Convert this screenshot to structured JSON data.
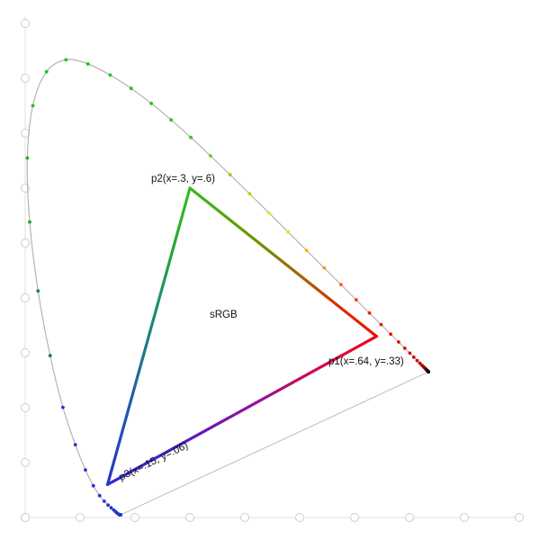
{
  "page": {
    "background": "#ffffff"
  },
  "labels": {
    "p1": {
      "text": "p1(x=.64, y=.33)"
    },
    "p2": {
      "text": "p2(x=.3, y=.6)"
    },
    "p3": {
      "text": "p3(x=.15, y=.06)"
    },
    "srgb": {
      "text": "sRGB"
    }
  },
  "chart_data": {
    "type": "line",
    "description": "CIE 1931 xy chromaticity spectral locus (horseshoe) with wavelength sample dots, line of purples, and sRGB gamut triangle",
    "xlim": [
      0,
      0.9
    ],
    "ylim": [
      0,
      0.9
    ],
    "tick_step": 0.1,
    "grid": false,
    "legend": false,
    "axis_style": {
      "line_color": "#e0e0e0",
      "tick_marker": "circle",
      "tick_fill": "#ffffff",
      "tick_stroke": "#cccccc",
      "tick_radius": 4.5
    },
    "locus_line_color": "#b4b4b4",
    "purple_line_color": "#bdbdbd",
    "srgb_triangle": {
      "label": "sRGB",
      "points": {
        "p1": [
          0.64,
          0.33
        ],
        "p2": [
          0.3,
          0.6
        ],
        "p3": [
          0.15,
          0.06
        ]
      },
      "stroke_width": 3.2,
      "edges": [
        {
          "from": "p3",
          "to": "p2",
          "stops": [
            [
              0,
              "#2433d0"
            ],
            [
              0.3,
              "#2060a8"
            ],
            [
              0.55,
              "#1d8877"
            ],
            [
              0.78,
              "#27a43a"
            ],
            [
              1,
              "#2bc41e"
            ]
          ]
        },
        {
          "from": "p2",
          "to": "p1",
          "stops": [
            [
              0,
              "#2fbe1e"
            ],
            [
              0.35,
              "#6f9400"
            ],
            [
              0.6,
              "#a86000"
            ],
            [
              0.82,
              "#dd2d00"
            ],
            [
              1,
              "#ee0c00"
            ]
          ]
        },
        {
          "from": "p1",
          "to": "p3",
          "stops": [
            [
              0,
              "#ee0a12"
            ],
            [
              0.25,
              "#cc0a5c"
            ],
            [
              0.5,
              "#8812a8"
            ],
            [
              0.75,
              "#4a1cc8"
            ],
            [
              1,
              "#2830d0"
            ]
          ]
        }
      ]
    },
    "spectral_locus": {
      "dot_radius": 1.9,
      "wavelength_nm": [
        380,
        385,
        390,
        395,
        400,
        405,
        410,
        415,
        420,
        425,
        430,
        435,
        440,
        445,
        450,
        455,
        460,
        465,
        470,
        475,
        480,
        485,
        490,
        495,
        500,
        505,
        510,
        515,
        520,
        525,
        530,
        535,
        540,
        545,
        550,
        555,
        560,
        565,
        570,
        575,
        580,
        585,
        590,
        595,
        600,
        605,
        610,
        615,
        620,
        625,
        630,
        635,
        640,
        645,
        650,
        655,
        660,
        665,
        670,
        675,
        680,
        685,
        690,
        695,
        700
      ],
      "x": [
        0.1741,
        0.174,
        0.1738,
        0.1736,
        0.1733,
        0.173,
        0.1726,
        0.1721,
        0.1714,
        0.1703,
        0.1689,
        0.1669,
        0.1644,
        0.1611,
        0.1566,
        0.151,
        0.144,
        0.1355,
        0.1241,
        0.1096,
        0.0913,
        0.0687,
        0.0454,
        0.0235,
        0.0082,
        0.0039,
        0.0139,
        0.0389,
        0.0743,
        0.1142,
        0.1547,
        0.1929,
        0.2296,
        0.2658,
        0.3016,
        0.3373,
        0.3731,
        0.4087,
        0.4441,
        0.4788,
        0.5125,
        0.5448,
        0.5752,
        0.6029,
        0.627,
        0.6482,
        0.6658,
        0.6801,
        0.6915,
        0.7006,
        0.7079,
        0.714,
        0.719,
        0.723,
        0.726,
        0.7283,
        0.73,
        0.7311,
        0.732,
        0.7327,
        0.7334,
        0.734,
        0.7344,
        0.7346,
        0.7347
      ],
      "y": [
        0.005,
        0.005,
        0.0049,
        0.0049,
        0.0048,
        0.0048,
        0.0048,
        0.0048,
        0.0051,
        0.0058,
        0.0069,
        0.0086,
        0.0109,
        0.0138,
        0.0177,
        0.0227,
        0.0297,
        0.0399,
        0.0578,
        0.0868,
        0.1327,
        0.2007,
        0.295,
        0.4127,
        0.5384,
        0.6548,
        0.7502,
        0.812,
        0.8338,
        0.8262,
        0.8059,
        0.7816,
        0.7543,
        0.7243,
        0.6923,
        0.6589,
        0.6245,
        0.5896,
        0.5547,
        0.5202,
        0.4866,
        0.4544,
        0.4242,
        0.3965,
        0.3725,
        0.3514,
        0.334,
        0.3197,
        0.3083,
        0.2993,
        0.292,
        0.2859,
        0.2809,
        0.277,
        0.274,
        0.2717,
        0.27,
        0.2689,
        0.268,
        0.2673,
        0.2666,
        0.266,
        0.2656,
        0.2654,
        0.2653
      ],
      "dot_colors": [
        "#2636cd",
        "#2636cd",
        "#2636cd",
        "#2636cd",
        "#2636cd",
        "#2636cd",
        "#2636cd",
        "#2636cd",
        "#2636cd",
        "#2636cd",
        "#2636cd",
        "#2636cd",
        "#2636cd",
        "#2636cd",
        "#2636cd",
        "#2636cd",
        "#2636cd",
        "#2636cd",
        "#2636cd",
        "#2636cd",
        "#2636cd",
        "#2636cd",
        "#17707c",
        "#1d7f48",
        "#27a02c",
        "#21b31f",
        "#12c812",
        "#0fcc0f",
        "#0ecc0e",
        "#10ca10",
        "#14c814",
        "#1ec614",
        "#2ac212",
        "#3abe0e",
        "#50c008",
        "#70c802",
        "#96cc00",
        "#bcd400",
        "#eaea00",
        "#f6de00",
        "#ffba00",
        "#ff9300",
        "#ff6600",
        "#fb3a00",
        "#f21d00",
        "#ee1200",
        "#ea0f00",
        "#e60d00",
        "#e20c00",
        "#dc0b00",
        "#d40a00",
        "#c80900",
        "#ba0800",
        "#aa0700",
        "#980600",
        "#860500",
        "#720400",
        "#5e0300",
        "#4c0300",
        "#3c0200",
        "#2e0100",
        "#220100",
        "#1a0100",
        "#140000",
        "#100000"
      ]
    }
  }
}
